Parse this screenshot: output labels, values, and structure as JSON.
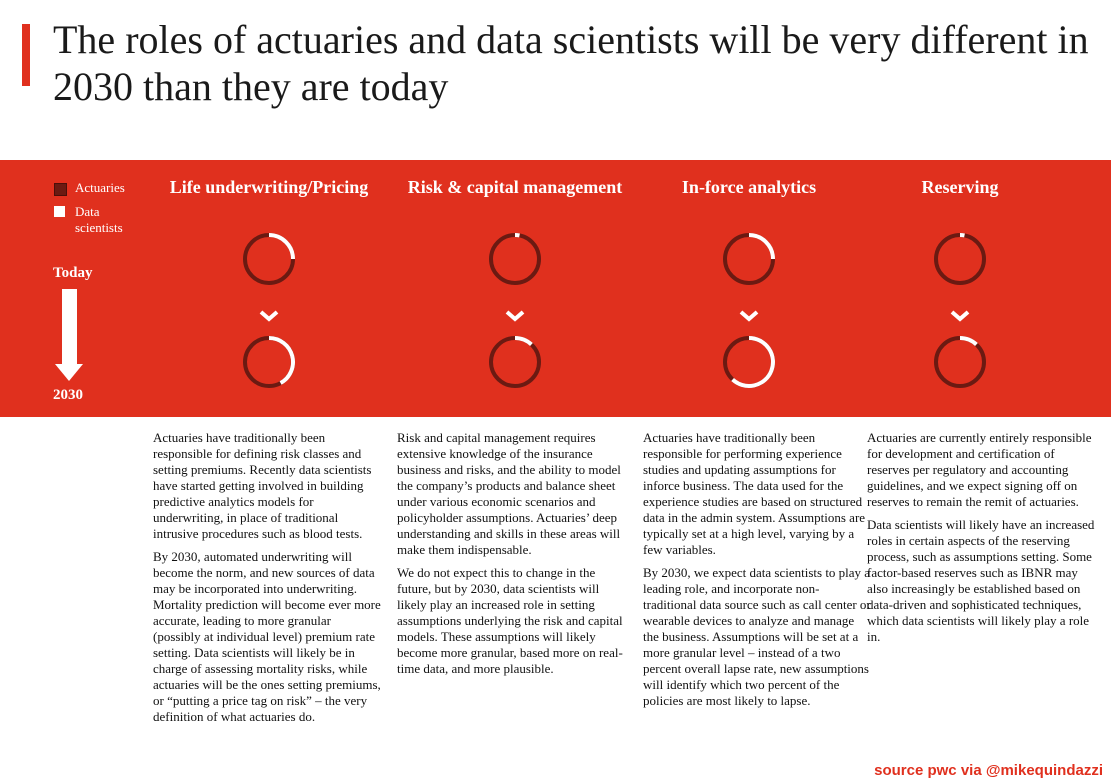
{
  "title": "The roles of actuaries and data scientists will be very different in 2030 than they are today",
  "colors": {
    "accent": "#e0301e",
    "actuaries": "#6b1a12",
    "data_scientists": "#ffffff"
  },
  "legend": {
    "actuaries": "Actuaries",
    "data_scientists": "Data scientists"
  },
  "timeline": {
    "start": "Today",
    "end": "2030"
  },
  "columns": [
    {
      "title": "Life underwriting/Pricing",
      "data_scientist_share_today": 0.25,
      "data_scientist_share_2030": 0.42,
      "paragraphs": [
        "Actuaries have traditionally been responsible for defining risk classes and setting premiums. Recently data scientists have started getting involved in building predictive analytics models for underwriting, in place of traditional intrusive procedures such as blood tests.",
        "By 2030, automated underwriting will become the norm, and new sources of data may be incorporated into underwriting. Mortality prediction will become ever more accurate, leading to more granular (possibly at individual level) premium rate setting. Data scientists will likely be in charge of assessing mortality risks, while actuaries will be the ones setting premiums, or “putting a price tag on risk” – the very definition of what actuaries do."
      ]
    },
    {
      "title": "Risk & capital management",
      "data_scientist_share_today": 0.03,
      "data_scientist_share_2030": 0.12,
      "paragraphs": [
        "Risk and capital management requires extensive knowledge of the insurance business and risks, and the ability to model the company’s products and balance sheet under various economic scenarios and policyholder assumptions. Actuaries’ deep understanding and skills in these areas will make them indispensable.",
        "We do not expect this to change in the future, but by 2030, data scientists will likely play an increased role in setting assumptions underlying the risk and capital models. These assumptions will likely become more granular, based more on real-time data, and more plausible."
      ]
    },
    {
      "title": "In-force analytics",
      "data_scientist_share_today": 0.25,
      "data_scientist_share_2030": 0.62,
      "paragraphs": [
        "Actuaries have traditionally been responsible for performing experience studies and updating assumptions for inforce business. The data used for the experience studies are based on structured data in the admin system. Assumptions are typically set at a high level, varying by a few variables.",
        "By 2030, we expect data scientists to play a leading role, and incorporate non-traditional data source such as call center or wearable devices to analyze and manage the business. Assumptions will be set at a more granular level – instead of a two percent overall lapse rate, new assumptions will identify which two percent of the policies are most likely to lapse."
      ]
    },
    {
      "title": "Reserving",
      "data_scientist_share_today": 0.03,
      "data_scientist_share_2030": 0.12,
      "paragraphs": [
        "Actuaries are currently entirely responsible for development and certification of reserves per regulatory and accounting guidelines, and we expect signing off on reserves to remain the remit of actuaries.",
        "Data scientists will likely have an increased roles in certain aspects of the reserving process, such as assumptions setting. Some factor-based reserves such as IBNR may also increasingly be established based on data-driven and sophisticated techniques, which data scientists will likely play a role in."
      ]
    }
  ],
  "source": "source pwc via @mikequindazzi"
}
